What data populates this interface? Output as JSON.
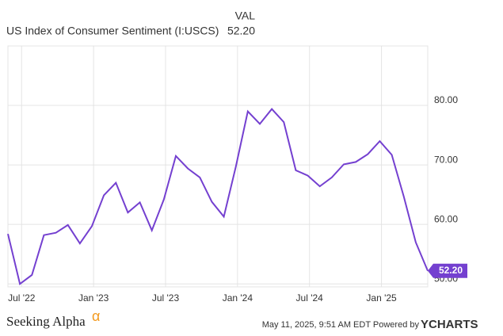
{
  "chart_data": {
    "type": "line",
    "title": "US Index of Consumer Sentiment (I:USCS)",
    "value_header": "VAL",
    "x": [
      "2022-05",
      "2022-06",
      "2022-07",
      "2022-08",
      "2022-09",
      "2022-10",
      "2022-11",
      "2022-12",
      "2023-01",
      "2023-02",
      "2023-03",
      "2023-04",
      "2023-05",
      "2023-06",
      "2023-07",
      "2023-08",
      "2023-09",
      "2023-10",
      "2023-11",
      "2023-12",
      "2024-01",
      "2024-02",
      "2024-03",
      "2024-04",
      "2024-05",
      "2024-06",
      "2024-07",
      "2024-08",
      "2024-09",
      "2024-10",
      "2024-11",
      "2024-12",
      "2025-01",
      "2025-02",
      "2025-03",
      "2025-04"
    ],
    "series": [
      {
        "name": "US Index of Consumer Sentiment (I:USCS)",
        "color": "#7440d0",
        "values": [
          58.4,
          50.0,
          51.5,
          58.2,
          58.6,
          59.9,
          56.8,
          59.7,
          64.9,
          67.0,
          62.0,
          63.7,
          59.0,
          64.2,
          71.5,
          69.4,
          67.9,
          63.8,
          61.3,
          69.7,
          79.0,
          76.9,
          79.4,
          77.2,
          69.1,
          68.2,
          66.4,
          67.9,
          70.1,
          70.5,
          71.8,
          74.0,
          71.7,
          64.7,
          57.0,
          52.2
        ],
        "value_labels": [
          null,
          null,
          null,
          null,
          null,
          null,
          null,
          null,
          null,
          null,
          null,
          null,
          null,
          null,
          null,
          null,
          null,
          null,
          null,
          null,
          null,
          null,
          null,
          null,
          null,
          null,
          null,
          null,
          null,
          null,
          null,
          null,
          null,
          null,
          null,
          "52.20"
        ]
      }
    ],
    "ylim": [
      49.5,
      90
    ],
    "yticks": [
      {
        "value": 50,
        "label": "50.00"
      },
      {
        "value": 60,
        "label": "60.00"
      },
      {
        "value": 70,
        "label": "70.00"
      },
      {
        "value": 80,
        "label": "80.00"
      }
    ],
    "xticks": [
      {
        "value": "2022-07",
        "label": "Jul '22"
      },
      {
        "value": "2023-01",
        "label": "Jan '23"
      },
      {
        "value": "2023-07",
        "label": "Jul '23"
      },
      {
        "value": "2024-01",
        "label": "Jan '24"
      },
      {
        "value": "2024-07",
        "label": "Jul '24"
      },
      {
        "value": "2025-01",
        "label": "Jan '25"
      }
    ],
    "grid": true,
    "footer": {
      "brand": "Seeking Alpha",
      "brand_mark": "α",
      "timestamp": "May 11, 2025, 9:51 AM EDT Powered by",
      "provider": "YCHARTS"
    }
  }
}
